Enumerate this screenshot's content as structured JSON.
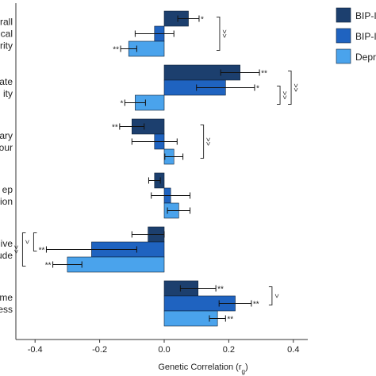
{
  "chart_data": {
    "type": "bar",
    "orientation": "horizontal",
    "xlabel": "Genetic Correlation (r",
    "xlabel_sub": "g",
    "xlabel_close": ")",
    "xlim": [
      -0.45,
      0.42
    ],
    "xticks": [
      -0.4,
      -0.2,
      0.0,
      0.2,
      0.4
    ],
    "xtick_labels": [
      "-0.4",
      "-0.2",
      "0.0",
      "0.2",
      "0.4"
    ],
    "category_labels": [
      [
        "rall",
        "ical",
        "rity"
      ],
      [
        "rate",
        "ity"
      ],
      [
        "rtary",
        "iour"
      ],
      [
        "ep",
        "ion"
      ],
      [
        "ive",
        "ude"
      ],
      [
        "me",
        "ness"
      ]
    ],
    "legend": {
      "position": "top-right",
      "entries": [
        {
          "name": "BIP-I",
          "color": "#1c3f6e"
        },
        {
          "name": "BIP-II",
          "color": "#1f63c0"
        },
        {
          "name": "Depr",
          "color": "#4aa3ec"
        }
      ]
    },
    "series": [
      {
        "name": "BIP-I",
        "color": "#1c3f6e",
        "values": [
          0.075,
          0.235,
          -0.1,
          -0.03,
          -0.05,
          0.105
        ],
        "errors": [
          0.033,
          0.06,
          0.038,
          0.018,
          0.05,
          0.055
        ],
        "marks": [
          "*",
          "**",
          "**",
          "",
          "",
          "**"
        ]
      },
      {
        "name": "BIP-II",
        "color": "#1f63c0",
        "values": [
          -0.03,
          0.19,
          -0.03,
          0.02,
          -0.225,
          0.22
        ],
        "errors": [
          0.06,
          0.09,
          0.07,
          0.06,
          0.14,
          0.05
        ],
        "marks": [
          "",
          "*",
          "",
          "",
          "**",
          "**"
        ]
      },
      {
        "name": "Depression",
        "color": "#4aa3ec",
        "values": [
          -0.11,
          -0.09,
          0.03,
          0.045,
          -0.3,
          0.165
        ],
        "errors": [
          0.025,
          0.032,
          0.028,
          0.035,
          0.045,
          0.025
        ],
        "marks": [
          "**",
          "*",
          "",
          "",
          "**",
          "**"
        ]
      }
    ],
    "brackets": [
      {
        "group": 0,
        "side": "right",
        "items": [
          [
            0,
            2
          ]
        ],
        "labels": [
          ">>"
        ]
      },
      {
        "group": 1,
        "side": "right",
        "items": [
          [
            1,
            2
          ],
          [
            0,
            2
          ]
        ],
        "labels": [
          ">>",
          ">>"
        ]
      },
      {
        "group": 2,
        "side": "right",
        "items": [
          [
            0,
            2
          ]
        ],
        "labels": [
          ">>"
        ]
      },
      {
        "group": 4,
        "side": "left",
        "items": [
          [
            0,
            1
          ],
          [
            0,
            2
          ]
        ],
        "labels": [
          "<",
          "<<"
        ]
      },
      {
        "group": 5,
        "side": "right",
        "items": [
          [
            0,
            1
          ]
        ],
        "labels": [
          ">"
        ]
      }
    ]
  }
}
